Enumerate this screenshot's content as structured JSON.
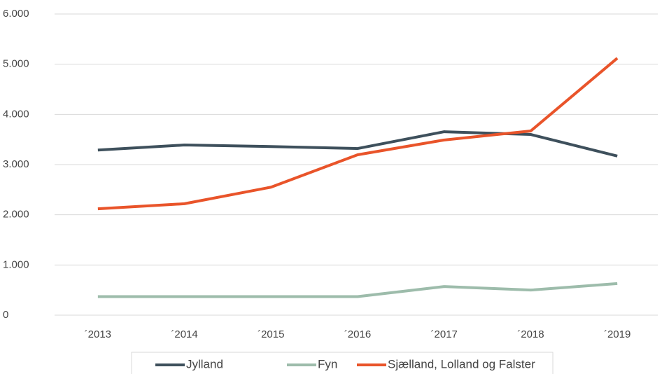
{
  "chart_data": {
    "type": "line",
    "categories": [
      "´2013",
      "´2014",
      "´2015",
      "´2016",
      "´2017",
      "´2018",
      "´2019"
    ],
    "series": [
      {
        "name": "Jylland",
        "color": "#3e505c",
        "values": [
          3290,
          3390,
          3360,
          3320,
          3655,
          3600,
          3170
        ]
      },
      {
        "name": "Fyn",
        "color": "#9dbcab",
        "values": [
          370,
          370,
          370,
          370,
          570,
          500,
          630
        ]
      },
      {
        "name": "Sjælland, Lolland og Falster",
        "color": "#e9542a",
        "values": [
          2120,
          2220,
          2550,
          3195,
          3490,
          3670,
          5120
        ]
      }
    ],
    "ylim": [
      0,
      6000
    ],
    "yticks": [
      0,
      {
        "value": 1000,
        "label": "1.000"
      },
      {
        "value": 2000,
        "label": "2.000"
      },
      {
        "value": 3000,
        "label": "3.000"
      },
      {
        "value": 4000,
        "label": "4.000"
      },
      {
        "value": 5000,
        "label": "5.000"
      },
      {
        "value": 6000,
        "label": "6.000"
      }
    ],
    "grid": true,
    "legend": "bottom"
  }
}
